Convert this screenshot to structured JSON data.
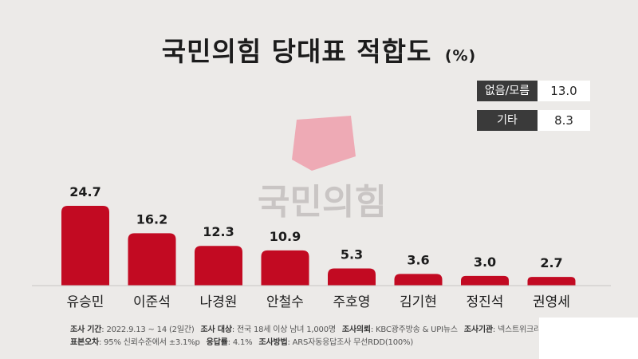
{
  "colors": {
    "bar": "#c20a22",
    "bar_top": "#d61f35",
    "logo_square": "#ef9aa8",
    "legend_label_bg": "#3a3a3a",
    "background": "#eceae8"
  },
  "title": {
    "main": "국민의힘 당대표 적합도",
    "unit": "(%)"
  },
  "watermark": "국민의힘",
  "legend_boxes": [
    {
      "label": "없음/모름",
      "value": "13.0"
    },
    {
      "label": "기타",
      "value": "8.3"
    }
  ],
  "chart_data": {
    "type": "bar",
    "title": "국민의힘 당대표 적합도",
    "unit": "(%)",
    "categories": [
      "유승민",
      "이준석",
      "나경원",
      "안철수",
      "주호영",
      "김기현",
      "정진석",
      "권영세"
    ],
    "values": [
      24.7,
      16.2,
      12.3,
      10.9,
      5.3,
      3.6,
      3.0,
      2.7
    ],
    "value_labels": [
      "24.7",
      "16.2",
      "12.3",
      "10.9",
      "5.3",
      "3.6",
      "3.0",
      "2.7"
    ],
    "ylim": [
      0,
      25
    ],
    "grid": false,
    "legend": "none"
  },
  "footnote": {
    "line1": [
      {
        "label": "조사 기간",
        "value": ": 2022.9.13 ~ 14 (2일간)"
      },
      {
        "label": "조사 대상",
        "value": ": 전국 18세 이상 남녀 1,000명"
      },
      {
        "label": "조사의뢰",
        "value": ": KBC광주방송 & UPI뉴스"
      },
      {
        "label": "조사기관",
        "value": ": 넥스트위크리서"
      }
    ],
    "line2": [
      {
        "label": "표본오차",
        "value": ": 95% 신뢰수준에서 ±3.1%p"
      },
      {
        "label": "응답률",
        "value": ": 4.1%"
      },
      {
        "label": "조사방법",
        "value": ": ARS자동응답조사 무선RDD(100%)"
      }
    ]
  }
}
